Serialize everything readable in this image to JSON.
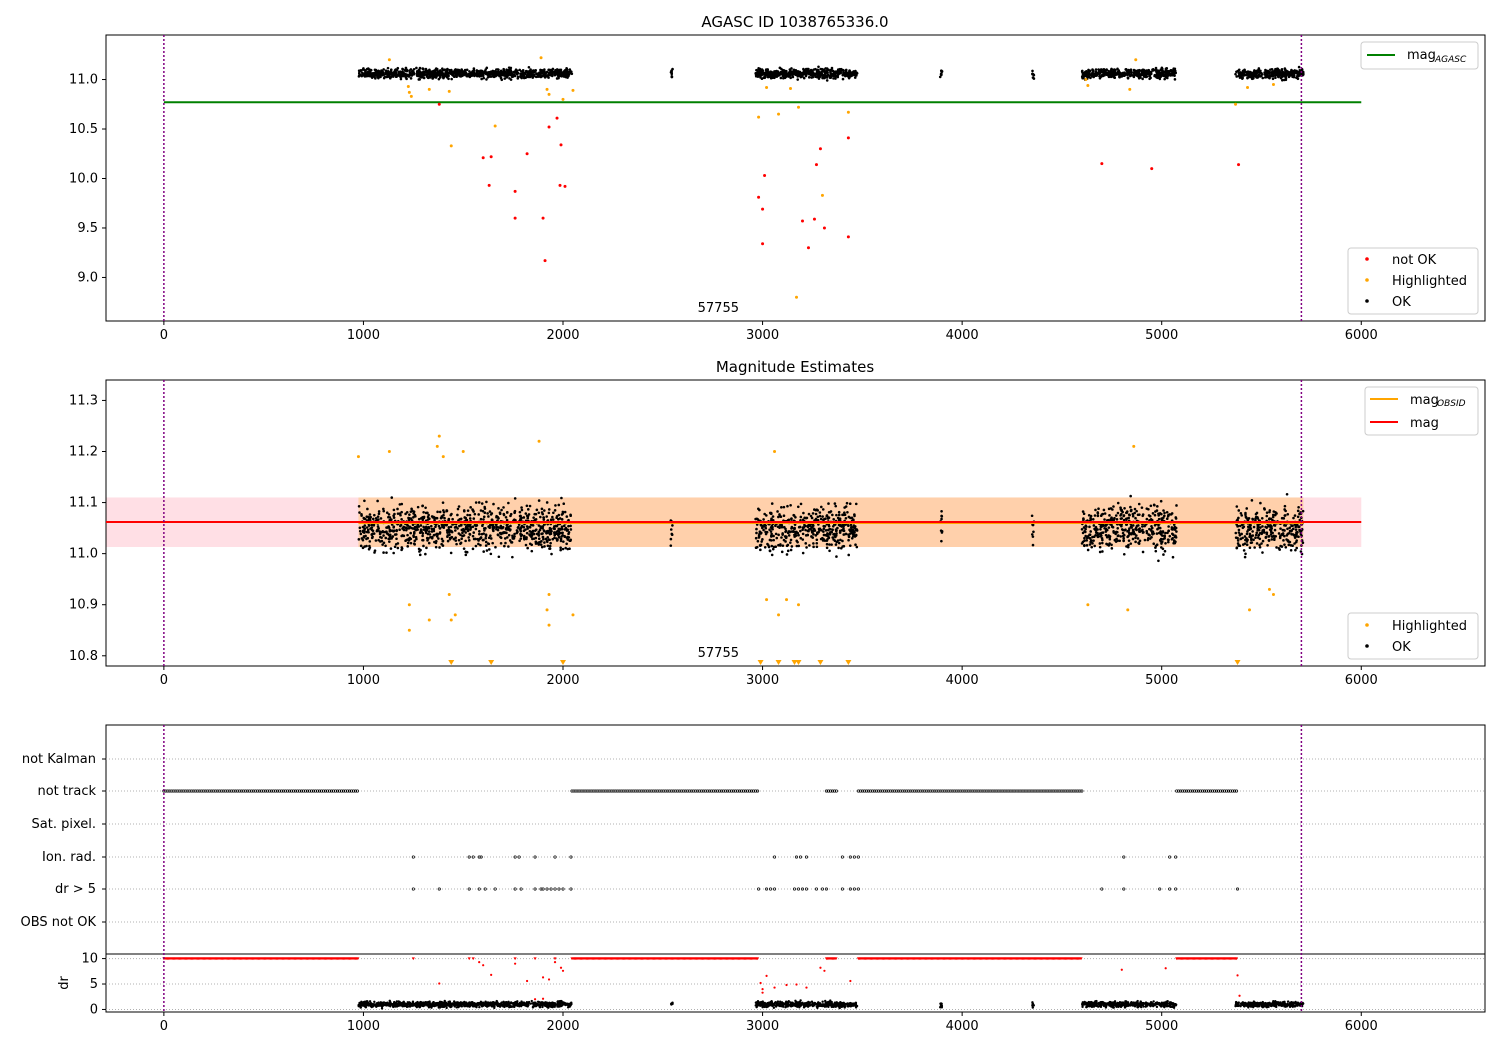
{
  "chart_data": [
    {
      "type": "scatter",
      "title": "AGASC ID 1038765336.0",
      "xlim": [
        -290,
        6620
      ],
      "ylim": [
        8.56,
        11.45
      ],
      "xticks": [
        0,
        1000,
        2000,
        3000,
        4000,
        5000,
        6000
      ],
      "yticks": [
        9.0,
        9.5,
        10.0,
        10.5,
        11.0
      ],
      "vlines": [
        0,
        5700
      ],
      "text_annotation": {
        "text": "57755",
        "x": 2850,
        "y": 8.65
      },
      "reference_line": {
        "name": "mag",
        "subscript": "AGASC",
        "value": 10.77,
        "x_range": [
          0,
          6000
        ],
        "color": "#008000"
      },
      "ok_segments": [
        [
          975,
          2045
        ],
        [
          2540,
          2550
        ],
        [
          2965,
          3475
        ],
        [
          3890,
          3900
        ],
        [
          4350,
          4360
        ],
        [
          4600,
          5075
        ],
        [
          5370,
          5710
        ]
      ],
      "ok_center": 11.06,
      "ok_spread": 0.07,
      "series": [
        {
          "name": "not OK",
          "color": "#ff0000",
          "points": [
            [
              1380,
              10.75
            ],
            [
              1640,
              10.22
            ],
            [
              1600,
              10.21
            ],
            [
              1630,
              9.93
            ],
            [
              1760,
              9.87
            ],
            [
              1820,
              10.25
            ],
            [
              1760,
              9.6
            ],
            [
              1900,
              9.6
            ],
            [
              1910,
              9.17
            ],
            [
              1930,
              10.52
            ],
            [
              1970,
              10.61
            ],
            [
              1990,
              10.34
            ],
            [
              1985,
              9.93
            ],
            [
              2010,
              9.92
            ],
            [
              2980,
              9.81
            ],
            [
              3000,
              9.69
            ],
            [
              3010,
              10.03
            ],
            [
              3000,
              9.34
            ],
            [
              3200,
              9.57
            ],
            [
              3230,
              9.3
            ],
            [
              3260,
              9.59
            ],
            [
              3270,
              10.14
            ],
            [
              3290,
              10.3
            ],
            [
              3310,
              9.5
            ],
            [
              3430,
              10.41
            ],
            [
              3430,
              9.41
            ],
            [
              4700,
              10.15
            ],
            [
              4950,
              10.1
            ],
            [
              5385,
              10.14
            ]
          ]
        },
        {
          "name": "Highlighted",
          "color": "#ffa500",
          "points": [
            [
              1130,
              11.2
            ],
            [
              1225,
              10.93
            ],
            [
              1230,
              10.87
            ],
            [
              1240,
              10.83
            ],
            [
              1330,
              10.9
            ],
            [
              1430,
              10.88
            ],
            [
              1440,
              10.33
            ],
            [
              1660,
              10.53
            ],
            [
              1890,
              11.22
            ],
            [
              1920,
              10.9
            ],
            [
              1930,
              10.85
            ],
            [
              2000,
              10.8
            ],
            [
              2050,
              10.89
            ],
            [
              2980,
              10.62
            ],
            [
              3020,
              10.92
            ],
            [
              3080,
              10.65
            ],
            [
              3140,
              10.91
            ],
            [
              3170,
              8.8
            ],
            [
              3180,
              10.72
            ],
            [
              3300,
              9.83
            ],
            [
              3430,
              10.67
            ],
            [
              4620,
              11.0
            ],
            [
              4630,
              10.94
            ],
            [
              4840,
              10.9
            ],
            [
              4870,
              11.2
            ],
            [
              5370,
              10.75
            ],
            [
              5430,
              10.92
            ],
            [
              5560,
              10.95
            ]
          ]
        },
        {
          "name": "OK",
          "color": "#000000"
        }
      ],
      "legend": [
        {
          "label": "not OK",
          "color": "#ff0000"
        },
        {
          "label": "Highlighted",
          "color": "#ffa500"
        },
        {
          "label": "OK",
          "color": "#000000"
        }
      ]
    },
    {
      "type": "scatter",
      "title": "Magnitude Estimates",
      "xlim": [
        -290,
        6620
      ],
      "ylim": [
        10.78,
        11.34
      ],
      "xticks": [
        0,
        1000,
        2000,
        3000,
        4000,
        5000,
        6000
      ],
      "yticks": [
        10.8,
        10.9,
        11.0,
        11.1,
        11.2,
        11.3
      ],
      "vlines": [
        0,
        5700
      ],
      "text_annotation": {
        "text": "57755",
        "x": 2850,
        "y": 10.8
      },
      "lines": [
        {
          "name": "mag",
          "subscript": "OBSID",
          "value": 11.06,
          "x_range": [
            975,
            5710
          ],
          "color": "#ffa500"
        },
        {
          "name": "mag",
          "value": 11.062,
          "x_range": [
            -290,
            6000
          ],
          "color": "#ff0000"
        }
      ],
      "bands": [
        {
          "y": [
            11.013,
            11.11
          ],
          "x_range": [
            -290,
            6000
          ],
          "color": "#ffc0cb"
        },
        {
          "y": [
            11.013,
            11.11
          ],
          "x_range": [
            975,
            5710
          ],
          "color": "#ffa500"
        }
      ],
      "ok_segments": [
        [
          975,
          2045
        ],
        [
          2540,
          2550
        ],
        [
          2965,
          3475
        ],
        [
          3890,
          3900
        ],
        [
          4350,
          4360
        ],
        [
          4600,
          5075
        ],
        [
          5370,
          5710
        ]
      ],
      "ok_center": 11.05,
      "ok_spread": 0.05,
      "series": [
        {
          "name": "Highlighted",
          "color": "#ffa500",
          "points": [
            [
              975,
              11.19
            ],
            [
              1130,
              11.2
            ],
            [
              1230,
              10.9
            ],
            [
              1230,
              10.85
            ],
            [
              1330,
              10.87
            ],
            [
              1370,
              11.21
            ],
            [
              1380,
              11.23
            ],
            [
              1400,
              11.19
            ],
            [
              1430,
              10.92
            ],
            [
              1440,
              10.87
            ],
            [
              1460,
              10.88
            ],
            [
              1500,
              11.2
            ],
            [
              1880,
              11.22
            ],
            [
              1920,
              10.89
            ],
            [
              1930,
              10.86
            ],
            [
              1930,
              10.92
            ],
            [
              2050,
              10.88
            ],
            [
              3020,
              10.91
            ],
            [
              3060,
              11.2
            ],
            [
              3080,
              10.88
            ],
            [
              3120,
              10.91
            ],
            [
              3180,
              10.9
            ],
            [
              4630,
              10.9
            ],
            [
              4830,
              10.89
            ],
            [
              4860,
              11.21
            ],
            [
              5440,
              10.89
            ],
            [
              5540,
              10.93
            ],
            [
              5560,
              10.92
            ]
          ]
        },
        {
          "name": "OK",
          "color": "#000000"
        }
      ],
      "off_scale_markers": {
        "color": "#ffa500",
        "x": [
          1440,
          1640,
          2000,
          2990,
          3080,
          3160,
          3180,
          3290,
          3430,
          5380
        ]
      },
      "legend_top": [
        {
          "label": "mag",
          "subscript": "OBSID",
          "color": "#ffa500"
        },
        {
          "label": "mag",
          "color": "#ff0000"
        }
      ],
      "legend_bottom": [
        {
          "label": "Highlighted",
          "color": "#ffa500"
        },
        {
          "label": "OK",
          "color": "#000000"
        }
      ]
    },
    {
      "type": "scatter",
      "xlim": [
        -290,
        6620
      ],
      "xticks": [
        0,
        1000,
        2000,
        3000,
        4000,
        5000,
        6000
      ],
      "vlines": [
        0,
        5700
      ],
      "flag_rows": [
        "not Kalman",
        "not track",
        "Sat. pixel.",
        "Ion. rad.",
        "dr > 5",
        "OBS not OK"
      ],
      "flags": {
        "not Kalman": [],
        "not track": [
          [
            0,
            975
          ],
          [
            2045,
            2975
          ],
          [
            3320,
            3370
          ],
          [
            3480,
            4600
          ],
          [
            5075,
            5380
          ]
        ],
        "Sat. pixel.": [],
        "Ion. rad.": [
          1250,
          1530,
          1550,
          1580,
          1590,
          1760,
          1780,
          1860,
          1960,
          2040,
          3060,
          3170,
          3190,
          3220,
          3400,
          3440,
          3460,
          3480,
          4810,
          5040,
          5070
        ],
        "dr > 5": [
          1250,
          1380,
          1530,
          1580,
          1610,
          1660,
          1760,
          1790,
          1860,
          1890,
          1900,
          1920,
          1940,
          1960,
          1980,
          2000,
          2040,
          2980,
          3020,
          3040,
          3060,
          3160,
          3180,
          3200,
          3220,
          3270,
          3300,
          3320,
          3400,
          3440,
          3460,
          3480,
          4700,
          4810,
          4990,
          5040,
          5070,
          5380
        ],
        "OBS not OK": []
      },
      "dr_panel": {
        "ylabel": "dr",
        "yticks": [
          0,
          5,
          10
        ],
        "ylim": [
          -0.5,
          10.9
        ],
        "capped_value": 10,
        "capped_segments": [
          [
            0,
            975
          ],
          [
            2045,
            2975
          ],
          [
            3320,
            3370
          ],
          [
            3480,
            4600
          ],
          [
            5075,
            5380
          ]
        ],
        "capped_points": [
          1250,
          1530,
          1550,
          1760,
          1860,
          1960
        ],
        "scattered": [
          [
            1380,
            5.1
          ],
          [
            1580,
            9.3
          ],
          [
            1600,
            8.7
          ],
          [
            1640,
            6.8
          ],
          [
            1760,
            9.0
          ],
          [
            1820,
            5.6
          ],
          [
            1900,
            6.3
          ],
          [
            1930,
            5.9
          ],
          [
            1960,
            9.3
          ],
          [
            1990,
            8.2
          ],
          [
            2000,
            7.6
          ],
          [
            2990,
            5.2
          ],
          [
            3000,
            4.0
          ],
          [
            3000,
            3.3
          ],
          [
            3020,
            6.6
          ],
          [
            3060,
            4.3
          ],
          [
            3120,
            4.8
          ],
          [
            3170,
            4.9
          ],
          [
            3220,
            4.3
          ],
          [
            3290,
            8.2
          ],
          [
            3310,
            7.6
          ],
          [
            3440,
            5.6
          ],
          [
            4800,
            7.8
          ],
          [
            5020,
            8.1
          ],
          [
            5380,
            6.7
          ],
          [
            5390,
            2.7
          ],
          [
            1900,
            2.1
          ],
          [
            1860,
            2.0
          ]
        ],
        "low_segments": [
          [
            975,
            2045
          ],
          [
            2540,
            2550
          ],
          [
            2965,
            3475
          ],
          [
            3890,
            3900
          ],
          [
            4350,
            4360
          ],
          [
            4600,
            5075
          ],
          [
            5370,
            5710
          ]
        ],
        "low_center": 1.0,
        "low_spread": 0.6
      }
    }
  ]
}
